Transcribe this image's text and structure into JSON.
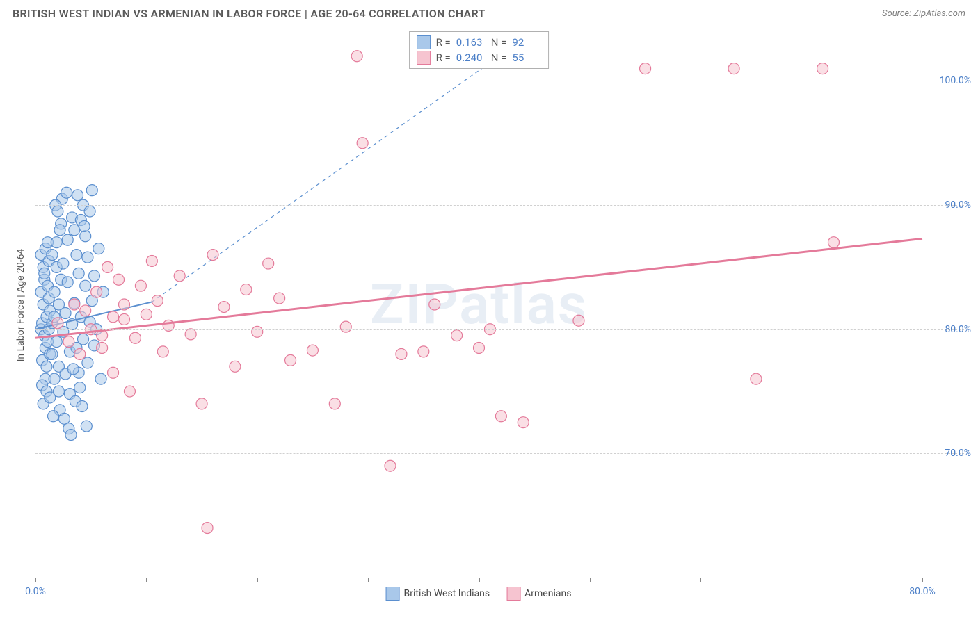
{
  "title": "BRITISH WEST INDIAN VS ARMENIAN IN LABOR FORCE | AGE 20-64 CORRELATION CHART",
  "source": "Source: ZipAtlas.com",
  "watermark": "ZIPatlas",
  "chart": {
    "type": "scatter",
    "y_label": "In Labor Force | Age 20-64",
    "xlim": [
      0,
      80
    ],
    "ylim": [
      60,
      104
    ],
    "x_ticks": [
      0,
      10,
      20,
      30,
      40,
      50,
      60,
      70,
      80
    ],
    "x_tick_labels": {
      "0": "0.0%",
      "80": "80.0%"
    },
    "y_gridlines": [
      70,
      80,
      90,
      100
    ],
    "y_tick_labels": {
      "70": "70.0%",
      "80": "80.0%",
      "90": "90.0%",
      "100": "100.0%"
    },
    "background_color": "#ffffff",
    "grid_color": "#d0d0d0",
    "axis_color": "#888888",
    "tick_label_color": "#4a7ec7",
    "marker_radius": 8,
    "marker_opacity": 0.55,
    "series": [
      {
        "name": "British West Indians",
        "fill": "#a9c8ea",
        "stroke": "#5b8fcf",
        "r_value": "0.163",
        "n_value": "92",
        "trend": {
          "x1": 0,
          "y1": 80,
          "x2": 10.5,
          "y2": 82.2,
          "dash_x2": 45,
          "dash_y2": 104,
          "solid": true,
          "width": 2
        },
        "points": [
          [
            0.5,
            80
          ],
          [
            0.6,
            80.5
          ],
          [
            0.8,
            79.5
          ],
          [
            1,
            81
          ],
          [
            1.2,
            80
          ],
          [
            0.7,
            82
          ],
          [
            0.9,
            78.5
          ],
          [
            1.1,
            79
          ],
          [
            1.3,
            81.5
          ],
          [
            0.5,
            83
          ],
          [
            0.6,
            77.5
          ],
          [
            0.8,
            84
          ],
          [
            1,
            77
          ],
          [
            1.2,
            82.5
          ],
          [
            0.7,
            85
          ],
          [
            0.9,
            76
          ],
          [
            1.1,
            83.5
          ],
          [
            1.3,
            78
          ],
          [
            0.5,
            86
          ],
          [
            0.6,
            75.5
          ],
          [
            0.8,
            84.5
          ],
          [
            1,
            75
          ],
          [
            1.2,
            85.5
          ],
          [
            0.7,
            74
          ],
          [
            0.9,
            86.5
          ],
          [
            1.1,
            87
          ],
          [
            1.3,
            74.5
          ],
          [
            1.5,
            80.5
          ],
          [
            1.7,
            81
          ],
          [
            1.9,
            79
          ],
          [
            2.1,
            82
          ],
          [
            1.5,
            78
          ],
          [
            1.7,
            83
          ],
          [
            1.9,
            85
          ],
          [
            2.1,
            77
          ],
          [
            2.3,
            84
          ],
          [
            1.5,
            86
          ],
          [
            1.7,
            76
          ],
          [
            1.9,
            87
          ],
          [
            2.1,
            75
          ],
          [
            2.3,
            88.5
          ],
          [
            2.5,
            79.8
          ],
          [
            2.7,
            81.3
          ],
          [
            2.9,
            83.8
          ],
          [
            3.1,
            78.2
          ],
          [
            2.5,
            85.3
          ],
          [
            2.7,
            76.4
          ],
          [
            2.9,
            87.2
          ],
          [
            3.1,
            74.8
          ],
          [
            3.3,
            80.4
          ],
          [
            3.5,
            82.1
          ],
          [
            3.3,
            89
          ],
          [
            3.5,
            88
          ],
          [
            3.7,
            78.5
          ],
          [
            3.9,
            84.5
          ],
          [
            4.1,
            81
          ],
          [
            3.7,
            86
          ],
          [
            3.9,
            76.5
          ],
          [
            4.1,
            88.8
          ],
          [
            4.3,
            79.2
          ],
          [
            4.5,
            83.5
          ],
          [
            4.7,
            77.3
          ],
          [
            4.3,
            90
          ],
          [
            4.5,
            87.5
          ],
          [
            4.7,
            85.8
          ],
          [
            4.9,
            80.6
          ],
          [
            5.1,
            82.3
          ],
          [
            5.3,
            78.7
          ],
          [
            4.9,
            89.5
          ],
          [
            5.1,
            91.2
          ],
          [
            5.3,
            84.3
          ],
          [
            5.5,
            80
          ],
          [
            5.7,
            86.5
          ],
          [
            5.9,
            76
          ],
          [
            6.1,
            83
          ],
          [
            2.2,
            73.5
          ],
          [
            2.4,
            90.5
          ],
          [
            2.6,
            72.8
          ],
          [
            2.8,
            91
          ],
          [
            3.0,
            72
          ],
          [
            3.2,
            71.5
          ],
          [
            1.6,
            73
          ],
          [
            1.8,
            90
          ],
          [
            2.0,
            89.5
          ],
          [
            2.2,
            88
          ],
          [
            3.4,
            76.8
          ],
          [
            3.6,
            74.2
          ],
          [
            3.8,
            90.8
          ],
          [
            4.0,
            75.3
          ],
          [
            4.2,
            73.8
          ],
          [
            4.4,
            88.3
          ],
          [
            4.6,
            72.2
          ]
        ]
      },
      {
        "name": "Armenians",
        "fill": "#f6c4d0",
        "stroke": "#e47a9a",
        "r_value": "0.240",
        "n_value": "55",
        "trend": {
          "x1": 0,
          "y1": 79.3,
          "x2": 80,
          "y2": 87.3,
          "solid": true,
          "width": 3
        },
        "points": [
          [
            2,
            80.5
          ],
          [
            3,
            79
          ],
          [
            3.5,
            82
          ],
          [
            4,
            78
          ],
          [
            4.5,
            81.5
          ],
          [
            5,
            80
          ],
          [
            5.5,
            83
          ],
          [
            6,
            79.5
          ],
          [
            6.5,
            85
          ],
          [
            7,
            81
          ],
          [
            7.5,
            84
          ],
          [
            8,
            82
          ],
          [
            8.5,
            75
          ],
          [
            6,
            78.5
          ],
          [
            7,
            76.5
          ],
          [
            8,
            80.8
          ],
          [
            9,
            79.3
          ],
          [
            9.5,
            83.5
          ],
          [
            10,
            81.2
          ],
          [
            10.5,
            85.5
          ],
          [
            11,
            82.3
          ],
          [
            11.5,
            78.2
          ],
          [
            12,
            80.3
          ],
          [
            13,
            84.3
          ],
          [
            14,
            79.6
          ],
          [
            15,
            74
          ],
          [
            15.5,
            64
          ],
          [
            16,
            86
          ],
          [
            17,
            81.8
          ],
          [
            18,
            77
          ],
          [
            19,
            83.2
          ],
          [
            20,
            79.8
          ],
          [
            21,
            85.3
          ],
          [
            22,
            82.5
          ],
          [
            23,
            77.5
          ],
          [
            25,
            78.3
          ],
          [
            27,
            74
          ],
          [
            28,
            80.2
          ],
          [
            29,
            102
          ],
          [
            29.5,
            95
          ],
          [
            32,
            69
          ],
          [
            33,
            78
          ],
          [
            35,
            78.2
          ],
          [
            36,
            82
          ],
          [
            38,
            79.5
          ],
          [
            40,
            78.5
          ],
          [
            41,
            80
          ],
          [
            42,
            73
          ],
          [
            44,
            72.5
          ],
          [
            49,
            80.7
          ],
          [
            55,
            101
          ],
          [
            65,
            76
          ],
          [
            71,
            101
          ],
          [
            72,
            87
          ],
          [
            63,
            101
          ]
        ]
      }
    ],
    "stats_box": {
      "border_color": "#b0b0b0",
      "r_label": "R  =",
      "n_label": "N  ="
    },
    "bottom_legend": {
      "items": [
        {
          "label": "British West Indians",
          "fill": "#a9c8ea",
          "stroke": "#5b8fcf"
        },
        {
          "label": "Armenians",
          "fill": "#f6c4d0",
          "stroke": "#e47a9a"
        }
      ]
    }
  }
}
